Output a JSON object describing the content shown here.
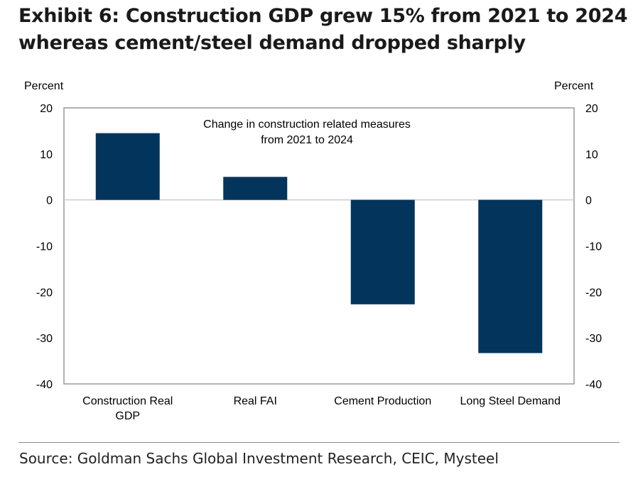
{
  "title_line1": "Exhibit 6: Construction GDP grew 15% from 2021 to 2024",
  "title_line2": "whereas cement/steel demand dropped sharply",
  "source": "Source: Goldman Sachs Global Investment Research, CEIC, Mysteel",
  "chart_data": {
    "type": "bar",
    "title": "Change in construction related measures from 2021 to 2024",
    "title_lines": [
      "Change in construction related measures",
      "from 2021 to 2024"
    ],
    "categories": [
      [
        "Construction Real",
        "GDP"
      ],
      [
        "Real FAI"
      ],
      [
        "Cement Production"
      ],
      [
        "Long Steel Demand"
      ]
    ],
    "values": [
      14.5,
      5.0,
      -22.7,
      -33.3
    ],
    "ylabel_left": "Percent",
    "ylabel_right": "Percent",
    "ylim": [
      -40,
      20
    ],
    "yticks": [
      20,
      10,
      0,
      -10,
      -20,
      -30,
      -40
    ],
    "bar_color": "#02345c",
    "grid": false
  }
}
